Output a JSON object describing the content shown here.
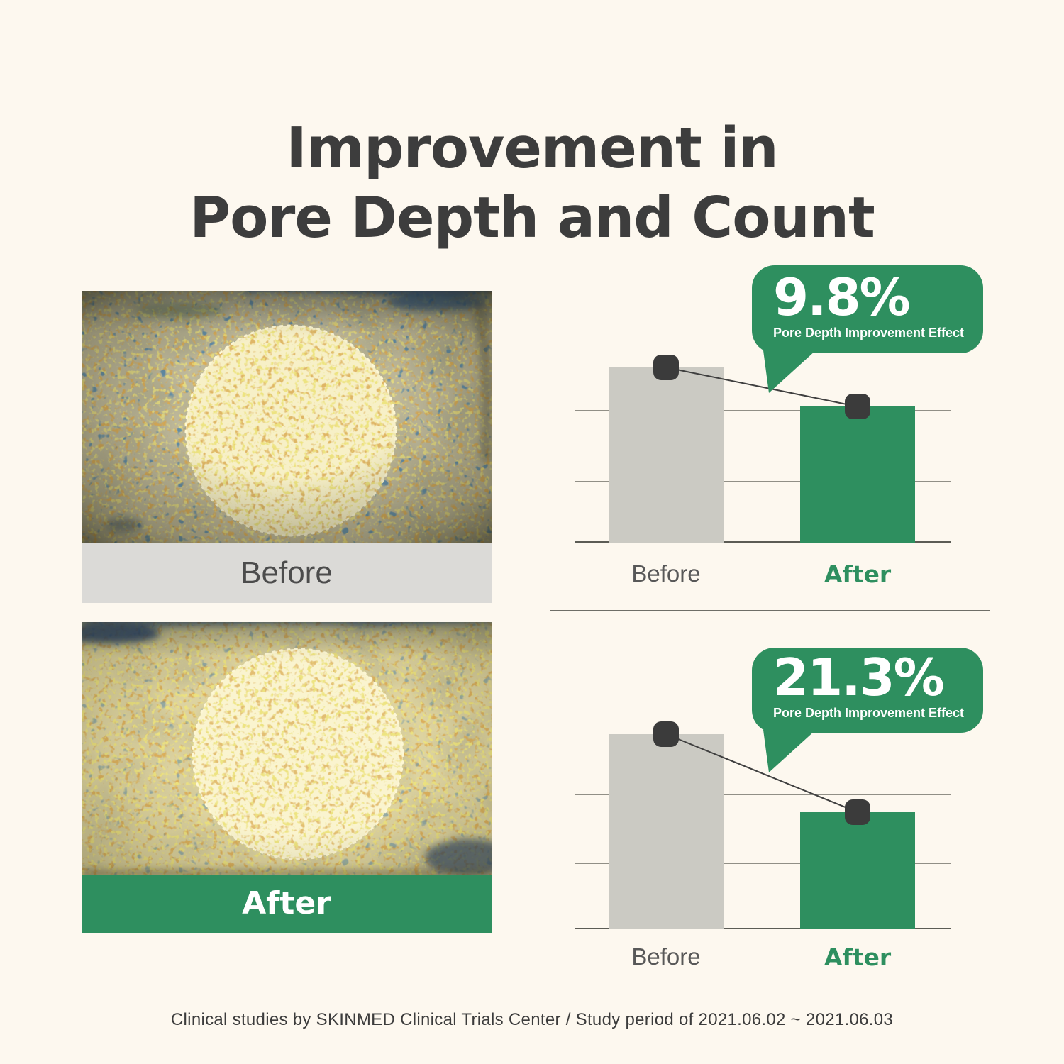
{
  "page": {
    "title_line1": "Improvement in",
    "title_line2": "Pore Depth and Count",
    "footnote": "Clinical studies by SKINMED Clinical Trials Center / Study period of 2021.06.02 ~ 2021.06.03",
    "background_color": "#fdf8ef"
  },
  "photos": {
    "before_label": "Before",
    "after_label": "After"
  },
  "chart_data": [
    {
      "type": "bar",
      "categories": [
        "Before",
        "After"
      ],
      "values": [
        100,
        77.7
      ],
      "value_note": "relative bar heights, Before = 100 (no numeric axis shown)",
      "callout_value": "9.8%",
      "callout_caption": "Pore Depth Improvement Effect",
      "bar_colors": [
        "#cbcac3",
        "#2e8f5f"
      ],
      "grid": true,
      "legend": "none"
    },
    {
      "type": "bar",
      "categories": [
        "Before",
        "After"
      ],
      "values": [
        100,
        60
      ],
      "value_note": "relative bar heights, Before = 100 (no numeric axis shown)",
      "callout_value": "21.3%",
      "callout_caption": "Pore Depth Improvement Effect",
      "bar_colors": [
        "#cbcac3",
        "#2e8f5f"
      ],
      "grid": true,
      "legend": "none"
    }
  ],
  "colors": {
    "accent_green": "#2e8f5f",
    "bar_gray": "#cbcac3",
    "marker_charcoal": "#3b3b3b",
    "title_text": "#3d3d3d",
    "before_label_bg": "#dbdad7",
    "background_cream": "#fdf8ef"
  }
}
